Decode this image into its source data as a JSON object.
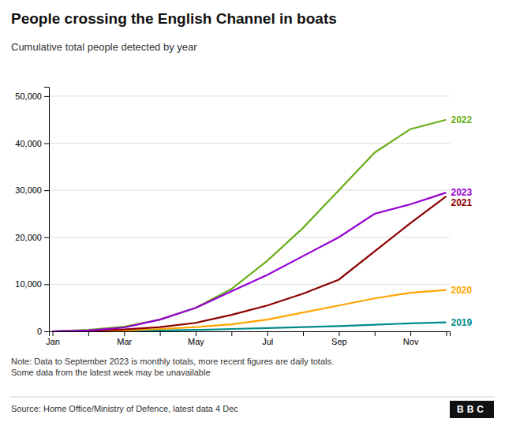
{
  "chart_data": {
    "type": "line",
    "title": "People crossing the English Channel in boats",
    "subtitle": "Cumulative total people detected by year",
    "note": "Note: Data to September 2023 is monthly totals, more recent figures are daily totals.\nSome data from the latest week may be unavailable",
    "source": "Source: Home Office/Ministry of Defence, latest data 4 Dec",
    "annotations": [
      "BBC"
    ],
    "categories": [
      "Jan",
      null,
      "Mar",
      null,
      "May",
      null,
      "Jul",
      null,
      "Sep",
      null,
      "Nov",
      null
    ],
    "series": [
      {
        "name": "2019",
        "color": "#008B8B",
        "values": [
          0,
          50,
          100,
          200,
          300,
          500,
          700,
          900,
          1100,
          1400,
          1700,
          1900
        ]
      },
      {
        "name": "2020",
        "color": "#FFA500",
        "values": [
          0,
          50,
          200,
          500,
          900,
          1500,
          2500,
          4000,
          5500,
          7000,
          8200,
          8800
        ]
      },
      {
        "name": "2021",
        "color": "#8B0000",
        "values": [
          0,
          100,
          400,
          900,
          1800,
          3500,
          5500,
          8000,
          11000,
          17000,
          23000,
          28700
        ]
      },
      {
        "name": "2022",
        "color": "#6AAF1A",
        "values": [
          0,
          300,
          1000,
          2500,
          5000,
          9000,
          15000,
          22000,
          30000,
          38000,
          43000,
          45000
        ]
      },
      {
        "name": "2023",
        "color": "#9400D3",
        "values": [
          0,
          200,
          800,
          2500,
          5000,
          8500,
          12000,
          16000,
          20000,
          25000,
          27000,
          29500
        ]
      }
    ],
    "ylim": [
      0,
      52000
    ],
    "yticks": [
      0,
      {
        "value": 10000,
        "label": "10,000"
      },
      {
        "value": 20000,
        "label": "20,000"
      },
      {
        "value": 30000,
        "label": "30,000"
      },
      {
        "value": 40000,
        "label": "40,000"
      },
      {
        "value": 50000,
        "label": "50,000"
      }
    ],
    "grid": true
  }
}
